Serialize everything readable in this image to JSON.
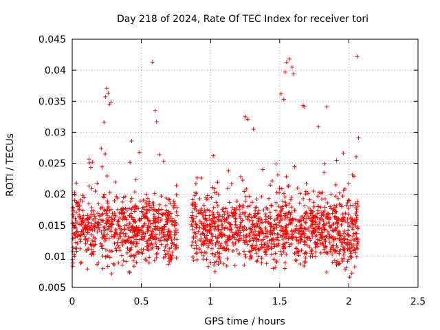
{
  "chart_data": {
    "type": "scatter",
    "title": "Day 218 of 2024, Rate Of TEC Index for receiver tori",
    "xlabel": "GPS time / hours",
    "ylabel": "ROTI / TECUs",
    "xlim": [
      0,
      2.5
    ],
    "ylim": [
      0.005,
      0.045
    ],
    "x_ticks": [
      0,
      0.5,
      1,
      1.5,
      2,
      2.5
    ],
    "x_tick_labels": [
      "0",
      "0.5",
      "1",
      "1.5",
      "2",
      "2.5"
    ],
    "y_ticks": [
      0.005,
      0.01,
      0.015,
      0.02,
      0.025,
      0.03,
      0.035,
      0.04,
      0.045
    ],
    "y_tick_labels": [
      "0.005",
      "0.01",
      "0.015",
      "0.02",
      "0.025",
      "0.03",
      "0.035",
      "0.04",
      "0.045"
    ],
    "grid": true,
    "marker": "+",
    "color": "#ff0000",
    "series": [
      {
        "name": "ROTI",
        "segments": [
          {
            "x_start": 0.0,
            "x_end": 0.76,
            "base_min": 0.0065,
            "base_max": 0.02,
            "spread": 0.0045
          },
          {
            "x_start": 0.86,
            "x_end": 2.07,
            "base_min": 0.006,
            "base_max": 0.02,
            "spread": 0.0045
          }
        ],
        "highlight_points": [
          {
            "x": 0.58,
            "y": 0.0413
          },
          {
            "x": 2.06,
            "y": 0.0422
          },
          {
            "x": 1.57,
            "y": 0.0418
          },
          {
            "x": 1.55,
            "y": 0.0413
          },
          {
            "x": 1.59,
            "y": 0.0405
          },
          {
            "x": 1.6,
            "y": 0.0394
          },
          {
            "x": 1.54,
            "y": 0.0397
          },
          {
            "x": 0.25,
            "y": 0.0371
          },
          {
            "x": 0.26,
            "y": 0.0363
          },
          {
            "x": 0.24,
            "y": 0.0357
          },
          {
            "x": 0.28,
            "y": 0.0348
          },
          {
            "x": 0.27,
            "y": 0.0345
          },
          {
            "x": 0.6,
            "y": 0.0335
          },
          {
            "x": 1.51,
            "y": 0.0362
          },
          {
            "x": 1.53,
            "y": 0.0353
          },
          {
            "x": 1.67,
            "y": 0.0343
          },
          {
            "x": 1.68,
            "y": 0.0341
          },
          {
            "x": 1.84,
            "y": 0.0341
          },
          {
            "x": 0.23,
            "y": 0.0316
          },
          {
            "x": 0.61,
            "y": 0.0317
          },
          {
            "x": 1.25,
            "y": 0.0325
          },
          {
            "x": 1.27,
            "y": 0.0321
          },
          {
            "x": 1.78,
            "y": 0.0309
          },
          {
            "x": 1.31,
            "y": 0.0305
          },
          {
            "x": 2.07,
            "y": 0.0291
          },
          {
            "x": 0.43,
            "y": 0.0286
          },
          {
            "x": 0.21,
            "y": 0.0274
          },
          {
            "x": 1.02,
            "y": 0.0262
          },
          {
            "x": 1.96,
            "y": 0.0266
          },
          {
            "x": 0.63,
            "y": 0.0264
          }
        ],
        "generated_points": 1900
      }
    ]
  }
}
